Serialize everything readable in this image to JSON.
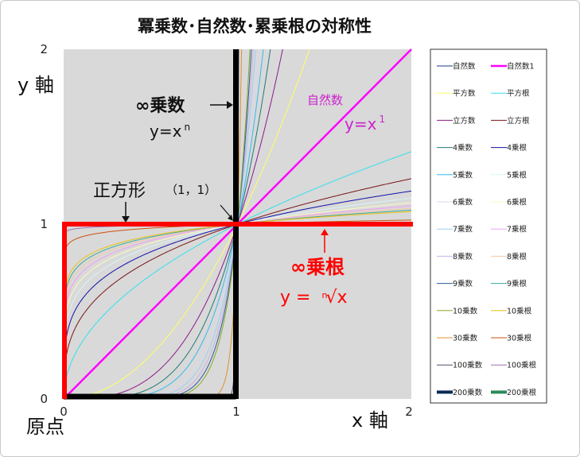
{
  "chart_data": {
    "type": "line",
    "title": "冪乗数･自然数･累乗根の対称性",
    "xlabel": "x 軸",
    "ylabel": "y 軸",
    "xlim": [
      0,
      2
    ],
    "ylim": [
      0,
      2
    ],
    "xticks": [
      "0",
      "1",
      "2"
    ],
    "yticks": [
      "0",
      "1",
      "2"
    ],
    "grid": false,
    "legend_position": "right",
    "plot_background": "#d9d9d9",
    "series": [
      {
        "name": "自然数",
        "exponent": 1,
        "color": "#1f3a8a",
        "width": 1
      },
      {
        "name": "自然数1",
        "exponent": 1,
        "color": "#ff00ff",
        "width": 2.5
      },
      {
        "name": "平方数",
        "exponent": 2,
        "color": "#ffff66",
        "width": 1
      },
      {
        "name": "平方根",
        "exponent": 0.5,
        "color": "#33e0ee",
        "width": 1
      },
      {
        "name": "立方数",
        "exponent": 3,
        "color": "#8b1a8b",
        "width": 1
      },
      {
        "name": "立方根",
        "exponent": 0.333333,
        "color": "#7a1414",
        "width": 1
      },
      {
        "name": "4乗数",
        "exponent": 4,
        "color": "#1f7a7a",
        "width": 1
      },
      {
        "name": "4乗根",
        "exponent": 0.25,
        "color": "#1010a8",
        "width": 1
      },
      {
        "name": "5乗数",
        "exponent": 5,
        "color": "#33bbee",
        "width": 1
      },
      {
        "name": "5乗根",
        "exponent": 0.2,
        "color": "#d8f4f4",
        "width": 1
      },
      {
        "name": "6乗数",
        "exponent": 6,
        "color": "#d8d8f0",
        "width": 1
      },
      {
        "name": "6乗根",
        "exponent": 0.166667,
        "color": "#fafac0",
        "width": 1
      },
      {
        "name": "7乗数",
        "exponent": 7,
        "color": "#9ad0f4",
        "width": 1
      },
      {
        "name": "7乗根",
        "exponent": 0.142857,
        "color": "#f0a0f0",
        "width": 1
      },
      {
        "name": "8乗数",
        "exponent": 8,
        "color": "#c8b0e8",
        "width": 1
      },
      {
        "name": "8乗根",
        "exponent": 0.125,
        "color": "#f4c8a8",
        "width": 1
      },
      {
        "name": "9乗数",
        "exponent": 9,
        "color": "#2a5a9a",
        "width": 1
      },
      {
        "name": "9乗根",
        "exponent": 0.111111,
        "color": "#3aaaa0",
        "width": 1
      },
      {
        "name": "10乗数",
        "exponent": 10,
        "color": "#88aa22",
        "width": 1
      },
      {
        "name": "10乗根",
        "exponent": 0.1,
        "color": "#f0c010",
        "width": 1
      },
      {
        "name": "30乗数",
        "exponent": 30,
        "color": "#e09030",
        "width": 1
      },
      {
        "name": "30乗根",
        "exponent": 0.033333,
        "color": "#d05010",
        "width": 1
      },
      {
        "name": "100乗数",
        "exponent": 100,
        "color": "#505070",
        "width": 1
      },
      {
        "name": "100乗根",
        "exponent": 0.01,
        "color": "#a070b0",
        "width": 1
      },
      {
        "name": "200乗数",
        "exponent": 200,
        "color": "#0a2a55",
        "width": 4
      },
      {
        "name": "200乗根",
        "exponent": 0.005,
        "color": "#2a8a5a",
        "width": 4
      }
    ],
    "annotations": {
      "inf_power": "∞乗数",
      "inf_power_formula_base": "y=x",
      "inf_power_formula_sup": "n",
      "natural_label": "自然数",
      "natural_formula_base": "y=x",
      "natural_formula_sup": "1",
      "square_label": "正方形",
      "point_label": "（1，1）",
      "inf_root": "∞乗根",
      "inf_root_formula_left": "y =",
      "inf_root_formula_index": "n",
      "inf_root_formula_radical": "√x",
      "origin_label": "原点"
    }
  }
}
